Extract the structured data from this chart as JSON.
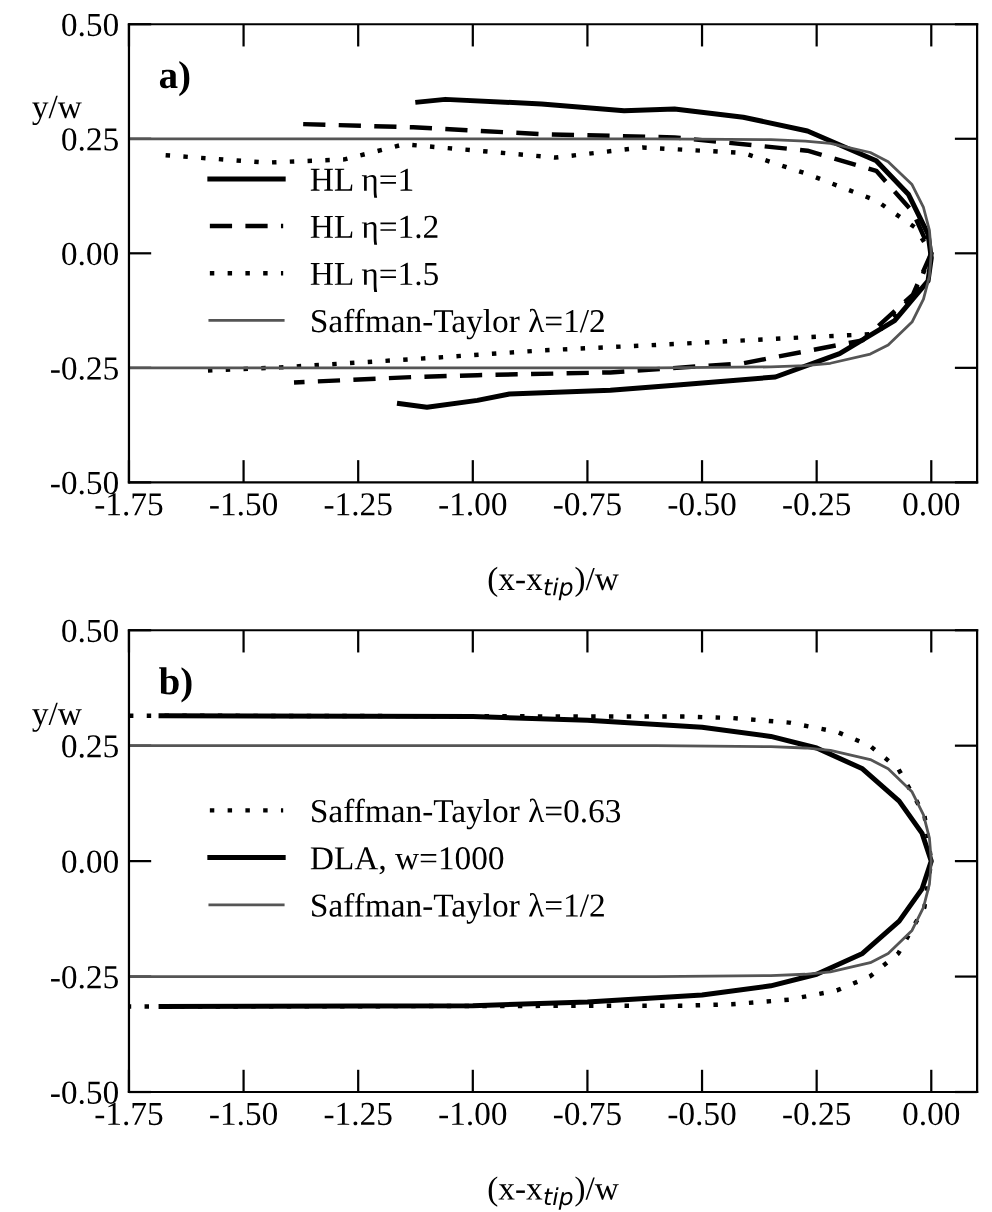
{
  "chart_data": [
    {
      "type": "line",
      "annotations": [
        "a)"
      ],
      "xlabel": "(x-x$_{tip}$)/w",
      "ylabel": "y/w",
      "xlim": [
        -1.75,
        0.1
      ],
      "ylim": [
        -0.5,
        0.5
      ],
      "xticks": [
        {
          "value": -1.75,
          "label": "-1.75"
        },
        {
          "value": -1.5,
          "label": "-1.50"
        },
        {
          "value": -1.25,
          "label": "-1.25"
        },
        {
          "value": -1.0,
          "label": "-1.00"
        },
        {
          "value": -0.75,
          "label": "-0.75"
        },
        {
          "value": -0.5,
          "label": "-0.50"
        },
        {
          "value": -0.25,
          "label": "-0.25"
        },
        {
          "value": 0,
          "label": "0.00"
        }
      ],
      "yticks": [
        {
          "value": -0.5,
          "label": "-0.50"
        },
        {
          "value": -0.25,
          "label": "-0.25"
        },
        {
          "value": 0,
          "label": "0.00"
        },
        {
          "value": 0.25,
          "label": "0.25"
        },
        {
          "value": 0.5,
          "label": "0.50"
        }
      ],
      "legend": "left",
      "grid": false,
      "series": [
        {
          "name": "HL η=1",
          "color": "#000000",
          "line_style": "solid",
          "x": [
            -1.12,
            -1.06,
            -0.85,
            -0.67,
            -0.56,
            -0.41,
            -0.27,
            -0.12,
            -0.05,
            -0.007,
            0,
            -0.007,
            -0.08,
            -0.2,
            -0.34,
            -0.56,
            -0.7,
            -0.92,
            -0.99,
            -1.1,
            -1.16
          ],
          "values": [
            0.33,
            0.336,
            0.326,
            0.311,
            0.315,
            0.297,
            0.267,
            0.202,
            0.129,
            0.042,
            -0.01,
            -0.06,
            -0.147,
            -0.219,
            -0.27,
            -0.288,
            -0.299,
            -0.307,
            -0.321,
            -0.336,
            -0.328
          ]
        },
        {
          "name": "HL η=1.2",
          "color": "#000000",
          "line_style": "dashed",
          "x": [
            -1.37,
            -1.13,
            -0.85,
            -0.56,
            -0.27,
            -0.12,
            -0.04,
            0,
            -0.04,
            -0.15,
            -0.41,
            -0.7,
            -0.99,
            -1.13,
            -1.39
          ],
          "values": [
            0.282,
            0.275,
            0.26,
            0.253,
            0.224,
            0.18,
            0.09,
            0,
            -0.09,
            -0.19,
            -0.24,
            -0.26,
            -0.266,
            -0.27,
            -0.282
          ]
        },
        {
          "name": "HL η=1.5",
          "color": "#000000",
          "line_style": "dotted",
          "x": [
            -1.67,
            -1.45,
            -1.28,
            -1.15,
            -0.99,
            -0.82,
            -0.63,
            -0.41,
            -0.27,
            -0.12,
            -0.036,
            0,
            -0.036,
            -0.12,
            -0.27,
            -0.56,
            -0.85,
            -1.13,
            -1.42,
            -1.58
          ],
          "values": [
            0.214,
            0.198,
            0.205,
            0.238,
            0.224,
            0.209,
            0.231,
            0.219,
            0.173,
            0.115,
            0.057,
            0,
            -0.089,
            -0.176,
            -0.183,
            -0.198,
            -0.212,
            -0.231,
            -0.249,
            -0.256
          ]
        },
        {
          "name": "Saffman-Taylor λ=1/2",
          "color": "#555555",
          "line_style": "solid",
          "x": [
            -1.75,
            -0.6,
            -0.35,
            -0.275,
            -0.22,
            -0.133,
            -0.094,
            -0.042,
            -0.017,
            -0.004,
            0,
            -0.004,
            -0.017,
            -0.042,
            -0.094,
            -0.133,
            -0.22,
            -0.275,
            -0.35,
            -0.6,
            -1.75
          ],
          "values": [
            0.25,
            0.25,
            0.248,
            0.245,
            0.24,
            0.22,
            0.2,
            0.15,
            0.1,
            0.05,
            0,
            -0.05,
            -0.1,
            -0.15,
            -0.2,
            -0.22,
            -0.24,
            -0.245,
            -0.248,
            -0.25,
            -0.25
          ]
        }
      ]
    },
    {
      "type": "line",
      "annotations": [
        "b)"
      ],
      "xlabel": "(x-x$_{tip}$)/w",
      "ylabel": "y/w",
      "xlim": [
        -1.75,
        0.1
      ],
      "ylim": [
        -0.5,
        0.5
      ],
      "xticks": [
        {
          "value": -1.75,
          "label": "-1.75"
        },
        {
          "value": -1.5,
          "label": "-1.50"
        },
        {
          "value": -1.25,
          "label": "-1.25"
        },
        {
          "value": -1.0,
          "label": "-1.00"
        },
        {
          "value": -0.75,
          "label": "-0.75"
        },
        {
          "value": -0.5,
          "label": "-0.50"
        },
        {
          "value": -0.25,
          "label": "-0.25"
        },
        {
          "value": 0,
          "label": "0.00"
        }
      ],
      "yticks": [
        {
          "value": -0.5,
          "label": "-0.50"
        },
        {
          "value": -0.25,
          "label": "-0.25"
        },
        {
          "value": 0,
          "label": "0.00"
        },
        {
          "value": 0.25,
          "label": "0.25"
        },
        {
          "value": 0.5,
          "label": "0.50"
        }
      ],
      "legend": "left",
      "grid": false,
      "series": [
        {
          "name": "Saffman-Taylor λ=0.63",
          "color": "#000000",
          "line_style": "dotted",
          "x": [
            -1.75,
            -0.54,
            -0.435,
            -0.31,
            -0.206,
            -0.134,
            -0.072,
            -0.015,
            0,
            -0.015,
            -0.072,
            -0.134,
            -0.206,
            -0.31,
            -0.435,
            -0.54,
            -1.75
          ],
          "values": [
            0.315,
            0.313,
            0.31,
            0.3,
            0.28,
            0.25,
            0.2,
            0.1,
            0,
            -0.1,
            -0.2,
            -0.25,
            -0.28,
            -0.3,
            -0.31,
            -0.313,
            -0.315
          ]
        },
        {
          "name": "DLA, w=1000",
          "color": "#000000",
          "line_style": "solid",
          "x": [
            -1.68,
            -1.0,
            -0.75,
            -0.5,
            -0.35,
            -0.25,
            -0.15,
            -0.07,
            -0.02,
            0,
            -0.02,
            -0.07,
            -0.15,
            -0.25,
            -0.35,
            -0.5,
            -0.75,
            -1.0,
            -1.68
          ],
          "values": [
            0.315,
            0.313,
            0.305,
            0.29,
            0.27,
            0.245,
            0.2,
            0.13,
            0.06,
            0,
            -0.06,
            -0.13,
            -0.2,
            -0.245,
            -0.27,
            -0.29,
            -0.305,
            -0.313,
            -0.315
          ]
        },
        {
          "name": "Saffman-Taylor λ=1/2",
          "color": "#555555",
          "line_style": "solid",
          "x": [
            -1.75,
            -0.6,
            -0.35,
            -0.275,
            -0.22,
            -0.133,
            -0.094,
            -0.042,
            -0.017,
            -0.004,
            0,
            -0.004,
            -0.017,
            -0.042,
            -0.094,
            -0.133,
            -0.22,
            -0.275,
            -0.35,
            -0.6,
            -1.75
          ],
          "values": [
            0.25,
            0.25,
            0.248,
            0.245,
            0.24,
            0.22,
            0.2,
            0.15,
            0.1,
            0.05,
            0,
            -0.05,
            -0.1,
            -0.15,
            -0.2,
            -0.22,
            -0.24,
            -0.245,
            -0.248,
            -0.25,
            -0.25
          ]
        }
      ]
    }
  ]
}
